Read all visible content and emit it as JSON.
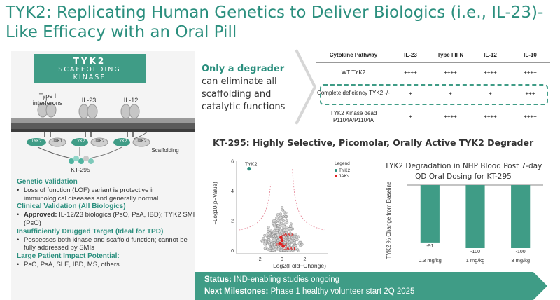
{
  "title": {
    "line1": "TYK2: Replicating Human Genetics to Deliver Biologics (i.e., IL-23)-",
    "line2": "Like Efficacy with an Oral Pill"
  },
  "tyk2_box": {
    "line1": "TYK2",
    "line2": "SCAFFOLDING",
    "line3": "KINASE"
  },
  "scheme": {
    "receptors": [
      "Type I interferons",
      "IL-23",
      "IL-12"
    ],
    "kinases": [
      "TYK2",
      "JAK1",
      "TYK2",
      "JAK2",
      "TYK2",
      "JAK2"
    ],
    "scaffolding": "Scaffolding",
    "compound": "KT-295"
  },
  "left_sections": [
    {
      "heading": "Genetic Validation",
      "bullets": [
        "Loss of function (LOF) variant is protective in immunological diseases and generally normal"
      ]
    },
    {
      "heading": "Clinical Validation (All Biologics)",
      "bullet_bold": "Approved:",
      "bullets": [
        " IL-12/23 biologics (PsO, PsA, IBD); TYK2 SMI (PsO)"
      ]
    },
    {
      "heading": "Insufficiently Drugged Target (Ideal for TPD)",
      "bullet_parts": [
        "Possesses both kinase ",
        "and",
        " scaffold function; cannot be fully addressed by SMIs"
      ]
    },
    {
      "heading": "Large Patient Impact Potential:",
      "bullets": [
        "PsO, PsA, SLE, IBD, MS, others"
      ]
    }
  ],
  "degrader_text": {
    "highlight": "Only a degrader",
    "rest": "can eliminate all scaffolding and catalytic functions"
  },
  "cytokine_table": {
    "columns": [
      "Cytokine Pathway",
      "IL-23",
      "Type I IFN",
      "IL-12",
      "IL-10"
    ],
    "rows": [
      {
        "label": "WT TYK2",
        "values": [
          "++++",
          "++++",
          "++++",
          "++++"
        ]
      },
      {
        "label": "Complete deficiency TYK2 -/-",
        "values": [
          "+",
          "+",
          "+",
          "+++"
        ]
      },
      {
        "label": "TYK2 Kinase dead P1104A/P1104A",
        "values": [
          "+",
          "++++",
          "++++",
          "++++"
        ]
      }
    ]
  },
  "kt_title": "KT-295: Highly Selective, Picomolar, Orally Active TYK2 Degrader",
  "chart_data": [
    {
      "type": "scatter",
      "xlabel": "Log2(Fold−Change)",
      "ylabel": "−Log10(p−Value)",
      "xlim": [
        -4,
        4
      ],
      "ylim": [
        -0.2,
        6
      ],
      "x_ticks": [
        "-2",
        "0",
        "2"
      ],
      "y_ticks": [
        "0",
        "2",
        "4",
        "6"
      ],
      "legend_title": "Legend",
      "series": [
        {
          "name": "TYK2",
          "color": "#2b8f7e",
          "points": [
            [
              -2.9,
              5.5
            ]
          ]
        },
        {
          "name": "JAKs",
          "color": "#e02020",
          "points": [
            [
              -0.2,
              0.5
            ],
            [
              0.0,
              0.7
            ],
            [
              0.1,
              0.3
            ],
            [
              -0.1,
              0.9
            ]
          ]
        }
      ],
      "annotations": [
        "TYK2",
        "JAK2",
        "JAK3",
        "JAK1"
      ]
    },
    {
      "type": "bar",
      "title": "TYK2 Degradation in NHP Blood Post 7-day QD Oral Dosing for KT-295",
      "ylabel": "TYK2 % Change from Baseline",
      "categories": [
        "0.3 mg/kg",
        "1 mg/kg",
        "3 mg/kg"
      ],
      "values": [
        -91,
        -100,
        -100
      ],
      "value_labels": [
        "-91",
        "-100",
        "-100"
      ],
      "ylim": [
        -100,
        0
      ],
      "color": "#3f9c86"
    }
  ],
  "banner": {
    "status_label": "Status:",
    "status_value": " IND-enabling studies ongoing",
    "milestones_label": "Next Milestones:",
    "milestones_value": " Phase 1 healthy volunteer start 2Q 2025"
  },
  "colors": {
    "accent": "#3f9c86",
    "title": "#2b8f7e",
    "jak_red": "#e02020"
  }
}
